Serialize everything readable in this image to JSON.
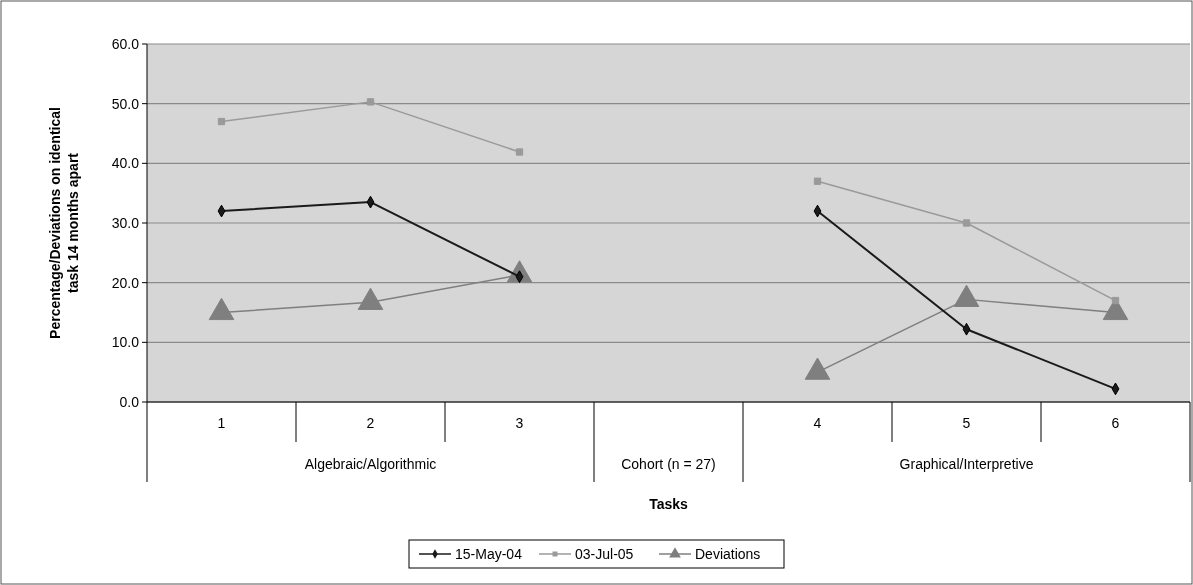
{
  "chart_data": {
    "type": "line",
    "xlabel": "Tasks",
    "ylabel": "Percentage/Deviations on identical task 14 months apart",
    "categories": [
      "1",
      "2",
      "3",
      null,
      "4",
      "5",
      "6"
    ],
    "series": [
      {
        "name": "15-May-04",
        "color": "#1a1a1a",
        "marker": "diamond",
        "values": [
          32.0,
          33.5,
          21.0,
          null,
          32.0,
          12.2,
          2.2
        ]
      },
      {
        "name": "03-Jul-05",
        "color": "#9a9a9a",
        "marker": "square",
        "values": [
          47.0,
          50.3,
          41.9,
          null,
          37.0,
          30.0,
          17.0
        ]
      },
      {
        "name": "Deviations",
        "color": "#7f7f7f",
        "marker": "triangle",
        "values": [
          15.0,
          16.7,
          21.3,
          null,
          5.0,
          17.2,
          15.0
        ]
      }
    ],
    "ylim": [
      0,
      60
    ],
    "yticks": [
      {
        "value": 0,
        "label": "0.0"
      },
      {
        "value": 10,
        "label": "10.0"
      },
      {
        "value": 20,
        "label": "20.0"
      },
      {
        "value": 30,
        "label": "30.0"
      },
      {
        "value": 40,
        "label": "40.0"
      },
      {
        "value": 50,
        "label": "50.0"
      },
      {
        "value": 60,
        "label": "60.0"
      }
    ],
    "grid": "y",
    "legend": "bottom",
    "annotations": [
      "Algebraic/Algorithmic",
      "Cohort (n = 27)",
      "Graphical/Interpretive"
    ]
  }
}
